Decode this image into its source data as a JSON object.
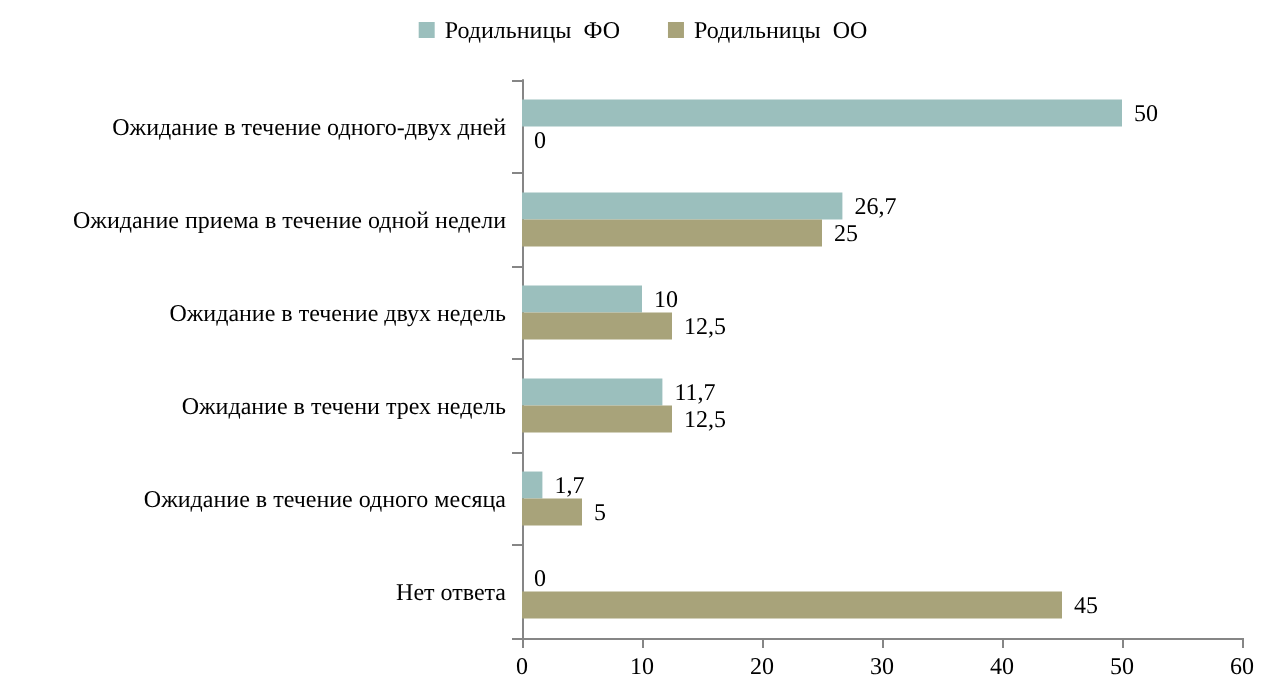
{
  "chart_data": {
    "type": "bar",
    "orientation": "horizontal",
    "categories": [
      "Ожидание в течение одного-двух дней",
      "Ожидание приема в течение одной недели",
      "Ожидание в течение двух недель",
      "Ожидание в течени трех недель",
      "Ожидание в течение одного месяца",
      "Нет ответа"
    ],
    "series": [
      {
        "name": "Родильницы  ФО",
        "color": "#9bbfbd",
        "values": [
          50,
          26.7,
          10,
          11.7,
          1.7,
          0
        ],
        "value_labels": [
          "50",
          "26,7",
          "10",
          "11,7",
          "1,7",
          "0"
        ]
      },
      {
        "name": "Родильницы  ОО",
        "color": "#a8a37a",
        "values": [
          0,
          25,
          12.5,
          12.5,
          5,
          45
        ],
        "value_labels": [
          "0",
          "25",
          "12,5",
          "12,5",
          "5",
          "45"
        ]
      }
    ],
    "xlim": [
      0,
      60
    ],
    "xticks": [
      0,
      10,
      20,
      30,
      40,
      50,
      60
    ],
    "grid": false,
    "legend": "top"
  }
}
